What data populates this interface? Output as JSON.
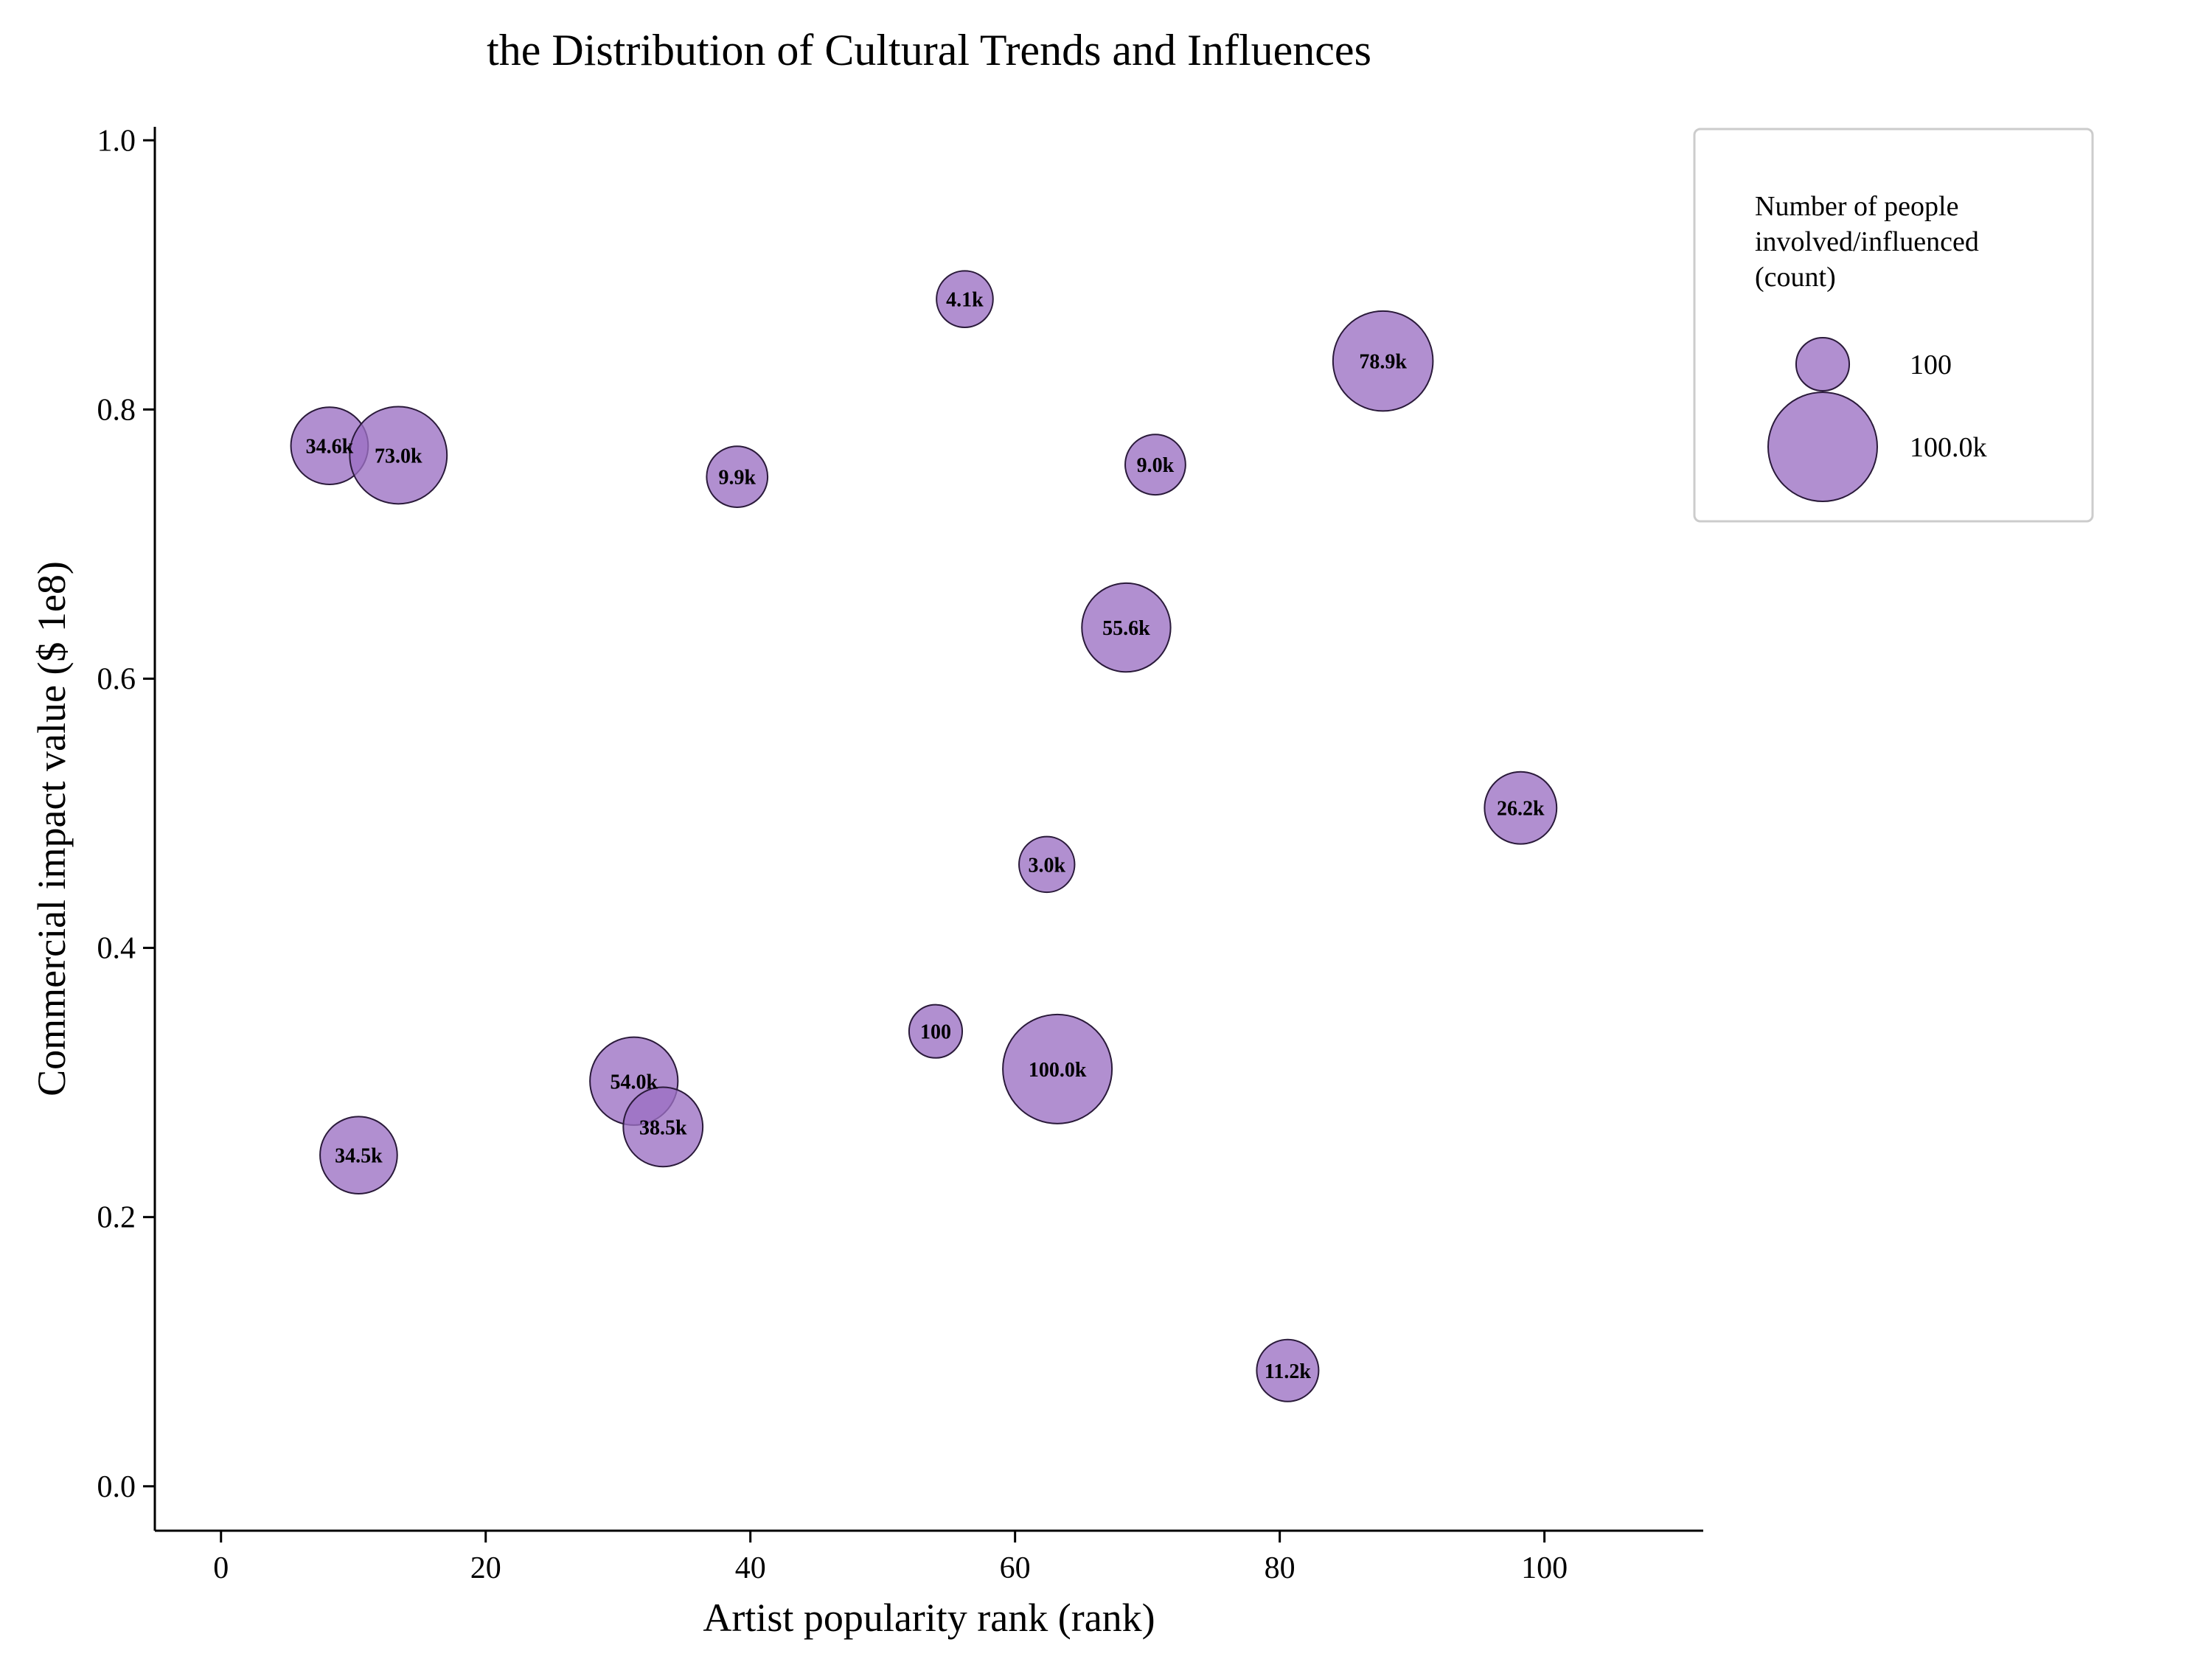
{
  "chart_data": {
    "type": "scatter",
    "title": "the Distribution of Cultural Trends and Influences",
    "xlabel": "Artist popularity rank (rank)",
    "ylabel": "Commercial impact value ($ 1e8)",
    "xlim": [
      -5,
      112
    ],
    "ylim": [
      -0.033,
      1.01
    ],
    "xticks": [
      0,
      20,
      40,
      60,
      80,
      100
    ],
    "xtick_labels": [
      "0",
      "20",
      "40",
      "60",
      "80",
      "100"
    ],
    "yticks": [
      0.0,
      0.2,
      0.4,
      0.6,
      0.8,
      1.0
    ],
    "ytick_labels": [
      "0.0",
      "0.2",
      "0.4",
      "0.6",
      "0.8",
      "1.0"
    ],
    "grid": false,
    "legend_position": "outside-top-right",
    "color": "#9b6fc3",
    "edge_color": "#2a1a3a",
    "size_legend": {
      "title": "Number of people\ninvolved/influenced\n(count)",
      "entries": [
        {
          "label": "100",
          "size": 100
        },
        {
          "label": "100.0k",
          "size": 100000
        }
      ]
    },
    "points": [
      {
        "x": 56.2,
        "y": 0.882,
        "size": 4100,
        "label": "4.1k"
      },
      {
        "x": 87.8,
        "y": 0.836,
        "size": 78900,
        "label": "78.9k"
      },
      {
        "x": 8.2,
        "y": 0.773,
        "size": 34600,
        "label": "34.6k"
      },
      {
        "x": 13.4,
        "y": 0.766,
        "size": 73000,
        "label": "73.0k"
      },
      {
        "x": 39.0,
        "y": 0.75,
        "size": 9900,
        "label": "9.9k"
      },
      {
        "x": 70.6,
        "y": 0.759,
        "size": 9000,
        "label": "9.0k"
      },
      {
        "x": 68.4,
        "y": 0.638,
        "size": 55600,
        "label": "55.6k"
      },
      {
        "x": 98.2,
        "y": 0.504,
        "size": 26200,
        "label": "26.2k"
      },
      {
        "x": 62.4,
        "y": 0.462,
        "size": 3000,
        "label": "3.0k"
      },
      {
        "x": 54.0,
        "y": 0.338,
        "size": 100,
        "label": "100"
      },
      {
        "x": 63.2,
        "y": 0.31,
        "size": 100000,
        "label": "100.0k"
      },
      {
        "x": 31.2,
        "y": 0.301,
        "size": 54000,
        "label": "54.0k"
      },
      {
        "x": 33.4,
        "y": 0.267,
        "size": 38500,
        "label": "38.5k"
      },
      {
        "x": 10.4,
        "y": 0.246,
        "size": 34500,
        "label": "34.5k"
      },
      {
        "x": 80.6,
        "y": 0.086,
        "size": 11200,
        "label": "11.2k"
      }
    ]
  }
}
